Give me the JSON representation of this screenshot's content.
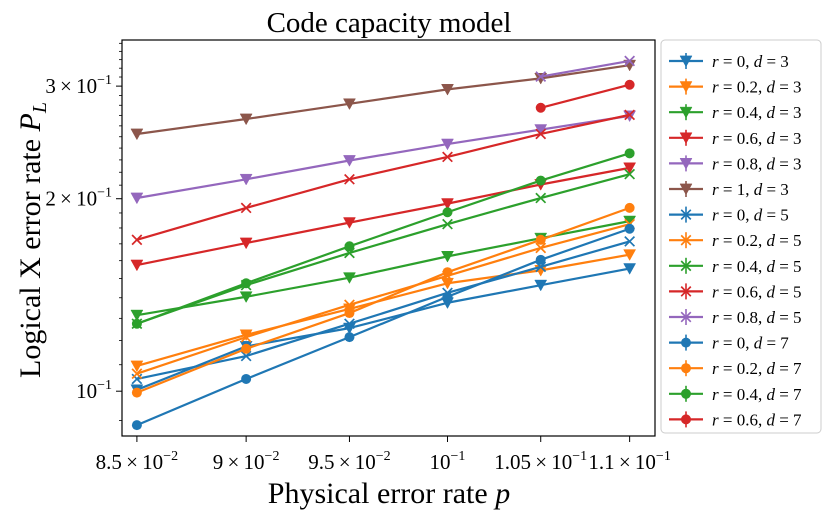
{
  "chart_data": {
    "type": "line",
    "title": "Code capacity model",
    "xlabel": "Physical error rate p",
    "ylabel": "Logical X error rate P_L",
    "xscale": "log",
    "yscale": "log",
    "xlim": [
      0.08434,
      0.11147
    ],
    "ylim": [
      0.0851,
      0.3542
    ],
    "x": [
      0.085,
      0.09,
      0.095,
      0.1,
      0.105,
      0.11
    ],
    "x_tick_labels": [
      {
        "value": 0.085,
        "mantissa": "8.5",
        "exp": "-2"
      },
      {
        "value": 0.09,
        "mantissa": "9",
        "exp": "-2"
      },
      {
        "value": 0.095,
        "mantissa": "9.5",
        "exp": "-2"
      },
      {
        "value": 0.1,
        "mantissa": "",
        "exp": "-1"
      },
      {
        "value": 0.105,
        "mantissa": "1.05",
        "exp": "-1"
      },
      {
        "value": 0.11,
        "mantissa": "1.1",
        "exp": "-1"
      }
    ],
    "y_tick_labels": [
      {
        "value": 0.1,
        "mantissa": "",
        "exp": "-1"
      },
      {
        "value": 0.2,
        "mantissa": "2",
        "exp": "-1"
      },
      {
        "value": 0.3,
        "mantissa": "3",
        "exp": "-1"
      }
    ],
    "legend_position": "outside-right",
    "series": [
      {
        "r": "0",
        "d": "3",
        "color": "#1f77b4",
        "marker": "triangle-down",
        "values": [
          0.1005,
          0.1175,
          0.1255,
          0.1375,
          0.1465,
          0.1555
        ]
      },
      {
        "r": "0.2",
        "d": "3",
        "color": "#ff7f0e",
        "marker": "triangle-down",
        "values": [
          0.1095,
          0.1225,
          0.1345,
          0.1475,
          0.1545,
          0.1635
        ]
      },
      {
        "r": "0.4",
        "d": "3",
        "color": "#2ca02c",
        "marker": "triangle-down",
        "values": [
          0.1315,
          0.1405,
          0.1505,
          0.1625,
          0.1735,
          0.1845
        ]
      },
      {
        "r": "0.6",
        "d": "3",
        "color": "#d62728",
        "marker": "triangle-down",
        "values": [
          0.1575,
          0.1705,
          0.1835,
          0.1965,
          0.2105,
          0.2235
        ]
      },
      {
        "r": "0.8",
        "d": "3",
        "color": "#9467bd",
        "marker": "triangle-down",
        "values": [
          0.2005,
          0.2145,
          0.2295,
          0.2435,
          0.2565,
          0.2695
        ]
      },
      {
        "r": "1",
        "d": "3",
        "color": "#8c564b",
        "marker": "triangle-down",
        "values": [
          0.2525,
          0.2665,
          0.2815,
          0.2965,
          0.3085,
          0.3235
        ]
      },
      {
        "r": "0",
        "d": "5",
        "color": "#1f77b4",
        "marker": "x",
        "values": [
          0.1045,
          0.1135,
          0.1275,
          0.1425,
          0.1565,
          0.1715
        ]
      },
      {
        "r": "0.2",
        "d": "5",
        "color": "#ff7f0e",
        "marker": "x",
        "values": [
          0.1065,
          0.1215,
          0.1365,
          0.1515,
          0.1675,
          0.1825
        ]
      },
      {
        "r": "0.4",
        "d": "5",
        "color": "#2ca02c",
        "marker": "x",
        "values": [
          0.1275,
          0.1465,
          0.1645,
          0.1825,
          0.2005,
          0.2185
        ]
      },
      {
        "r": "0.6",
        "d": "5",
        "color": "#d62728",
        "marker": "x",
        "values": [
          0.1725,
          0.1935,
          0.2145,
          0.2325,
          0.2525,
          0.2705
        ]
      },
      {
        "r": "0.8",
        "d": "5",
        "color": "#9467bd",
        "marker": "x",
        "values": [
          null,
          null,
          null,
          null,
          0.3105,
          0.3285
        ]
      },
      {
        "r": "0",
        "d": "7",
        "color": "#1f77b4",
        "marker": "circle",
        "values": [
          0.0885,
          0.1045,
          0.1215,
          0.1405,
          0.1605,
          0.1795
        ]
      },
      {
        "r": "0.2",
        "d": "7",
        "color": "#ff7f0e",
        "marker": "circle",
        "values": [
          0.0995,
          0.1165,
          0.1325,
          0.1535,
          0.1725,
          0.1935
        ]
      },
      {
        "r": "0.4",
        "d": "7",
        "color": "#2ca02c",
        "marker": "circle",
        "values": [
          0.1275,
          0.1475,
          0.1685,
          0.1905,
          0.2135,
          0.2355
        ]
      },
      {
        "r": "0.6",
        "d": "7",
        "color": "#d62728",
        "marker": "circle",
        "values": [
          null,
          null,
          null,
          null,
          0.2775,
          0.3015
        ]
      }
    ]
  }
}
